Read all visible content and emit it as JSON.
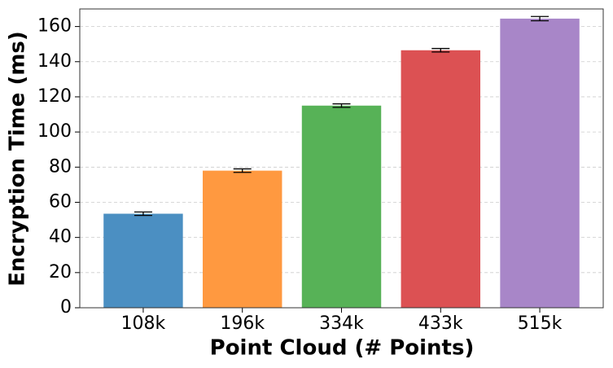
{
  "chart_data": {
    "type": "bar",
    "x_label": "Point Cloud (# Points)",
    "y_label": "Encryption Time (ms)",
    "categories": [
      "108k",
      "196k",
      "334k",
      "433k",
      "515k"
    ],
    "values": [
      53.5,
      78,
      115,
      146.5,
      164.5
    ],
    "errors": [
      1,
      1,
      1,
      1,
      1.2
    ],
    "colors": [
      "#4b8fc2",
      "#ff9940",
      "#57b257",
      "#dc5153",
      "#a886c8"
    ],
    "ylim": [
      0,
      170
    ],
    "yticks": [
      0,
      20,
      40,
      60,
      80,
      100,
      120,
      140,
      160
    ],
    "grid": true
  }
}
